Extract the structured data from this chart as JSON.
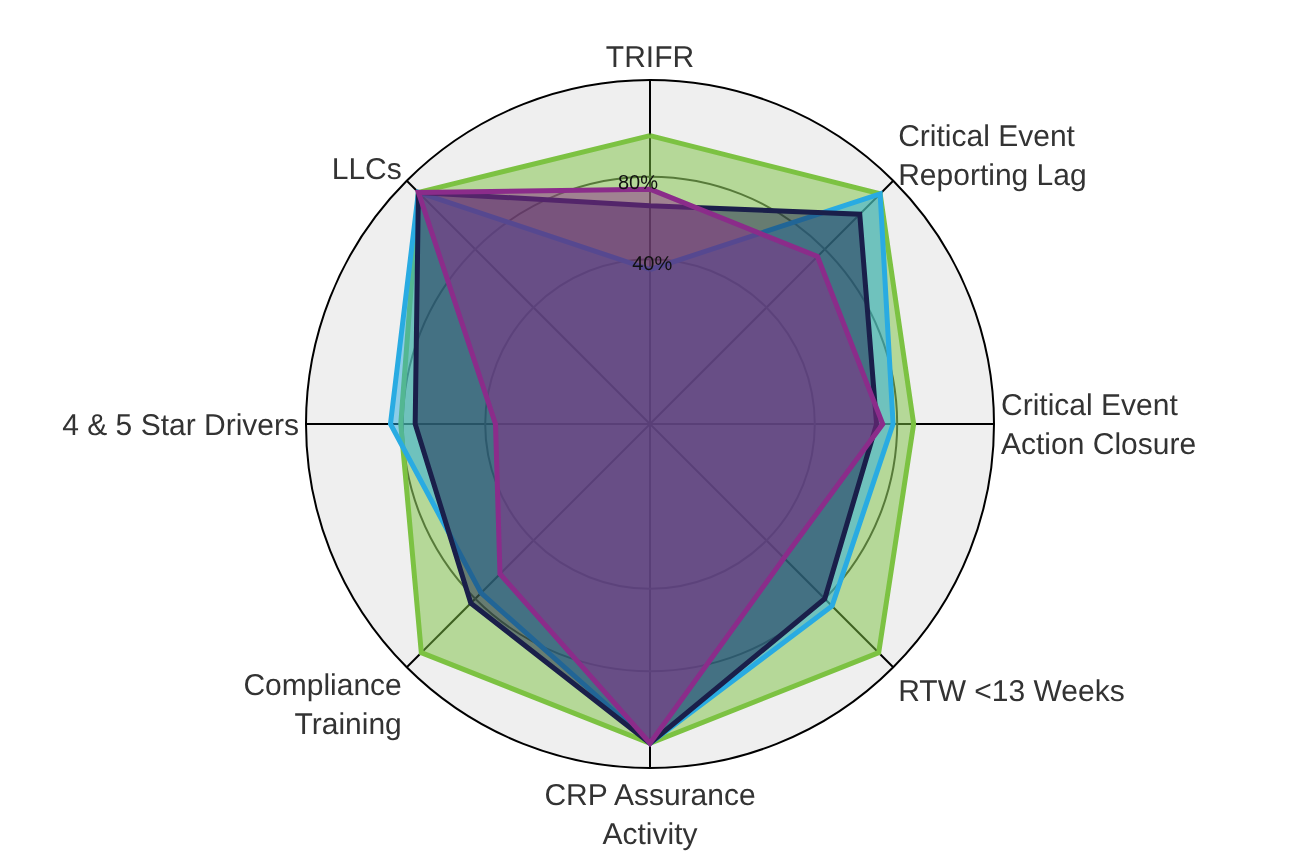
{
  "chart_data": {
    "type": "radar",
    "categories": [
      "TRIFR",
      "Critical Event\nReporting Lag",
      "Critical Event\nAction Closure",
      "RTW <13 Weeks",
      "CRP Assurance\nActivity",
      "Compliance\nTraining",
      "4 & 5 Star Drivers",
      "LLCs"
    ],
    "ylim": [
      -40,
      127
    ],
    "yticks": [
      {
        "value": 40,
        "label": "40%"
      },
      {
        "value": 80,
        "label": "80%"
      }
    ],
    "grid": true,
    "series": [
      {
        "color": "#7cc242",
        "values": [
          100,
          118,
          88,
          117,
          115,
          117,
          81,
          119
        ]
      },
      {
        "color": "#29abe2",
        "values": [
          35,
          118,
          78,
          85,
          115,
          76,
          86,
          119
        ]
      },
      {
        "color": "#1a1f4a",
        "values": [
          66,
          104,
          70,
          80,
          115,
          83,
          74,
          119
        ]
      },
      {
        "color": "#8b2c8a",
        "values": [
          74,
          75,
          73,
          52,
          115,
          63,
          35,
          119
        ]
      }
    ]
  }
}
